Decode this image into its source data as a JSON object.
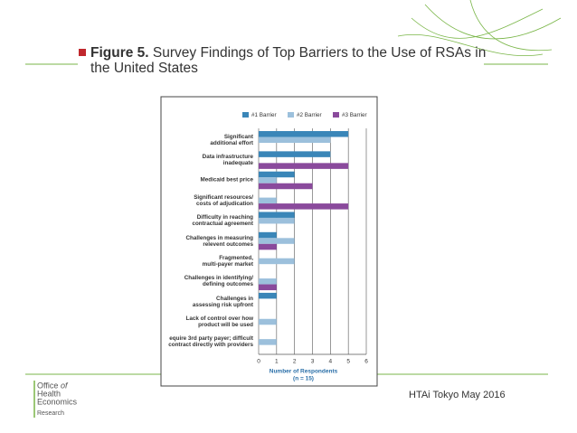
{
  "title_label": "Figure 5.",
  "title": "Survey Findings of Top Barriers to the Use of RSAs in the United States",
  "footer": "HTAi Tokyo May 2016",
  "logo": [
    "Office",
    "of",
    "Health",
    "Economics",
    "Research"
  ],
  "chart_data": {
    "type": "barh",
    "categories": [
      "Significant\nadditional effort",
      "Data infrastructure\ninadequate",
      "Medicaid best price",
      "Significant resources/\ncosts of adjudication",
      "Difficulty in reaching\ncontractual agreement",
      "Challenges in measuring\nrelevent outcomes",
      "Fragmented,\nmulti-payer market",
      "Challenges in identifying/\ndefining outcomes",
      "Challenges in\nassessing risk upfront",
      "Lack of control over how\nproduct will be used",
      "equire 3rd party payer; difficult\ncontract directly with providers"
    ],
    "series": [
      {
        "name": "#1 Barrier",
        "color": "#3a86b8",
        "values": [
          5,
          4,
          2,
          0,
          2,
          1,
          0,
          0,
          1,
          0,
          0
        ]
      },
      {
        "name": "#2 Barrier",
        "color": "#9cc0dc",
        "values": [
          4,
          0,
          1,
          1,
          2,
          2,
          2,
          1,
          0,
          1,
          1
        ]
      },
      {
        "name": "#3 Barrier",
        "color": "#8a4a9c",
        "values": [
          0,
          5,
          3,
          5,
          0,
          1,
          0,
          1,
          0,
          0,
          0
        ]
      }
    ],
    "xlabel": [
      "Number of Respondents",
      "(n = 15)"
    ],
    "xlim": [
      0,
      6
    ],
    "xticks": [
      0,
      1,
      2,
      3,
      4,
      5,
      6
    ],
    "grid": true
  }
}
